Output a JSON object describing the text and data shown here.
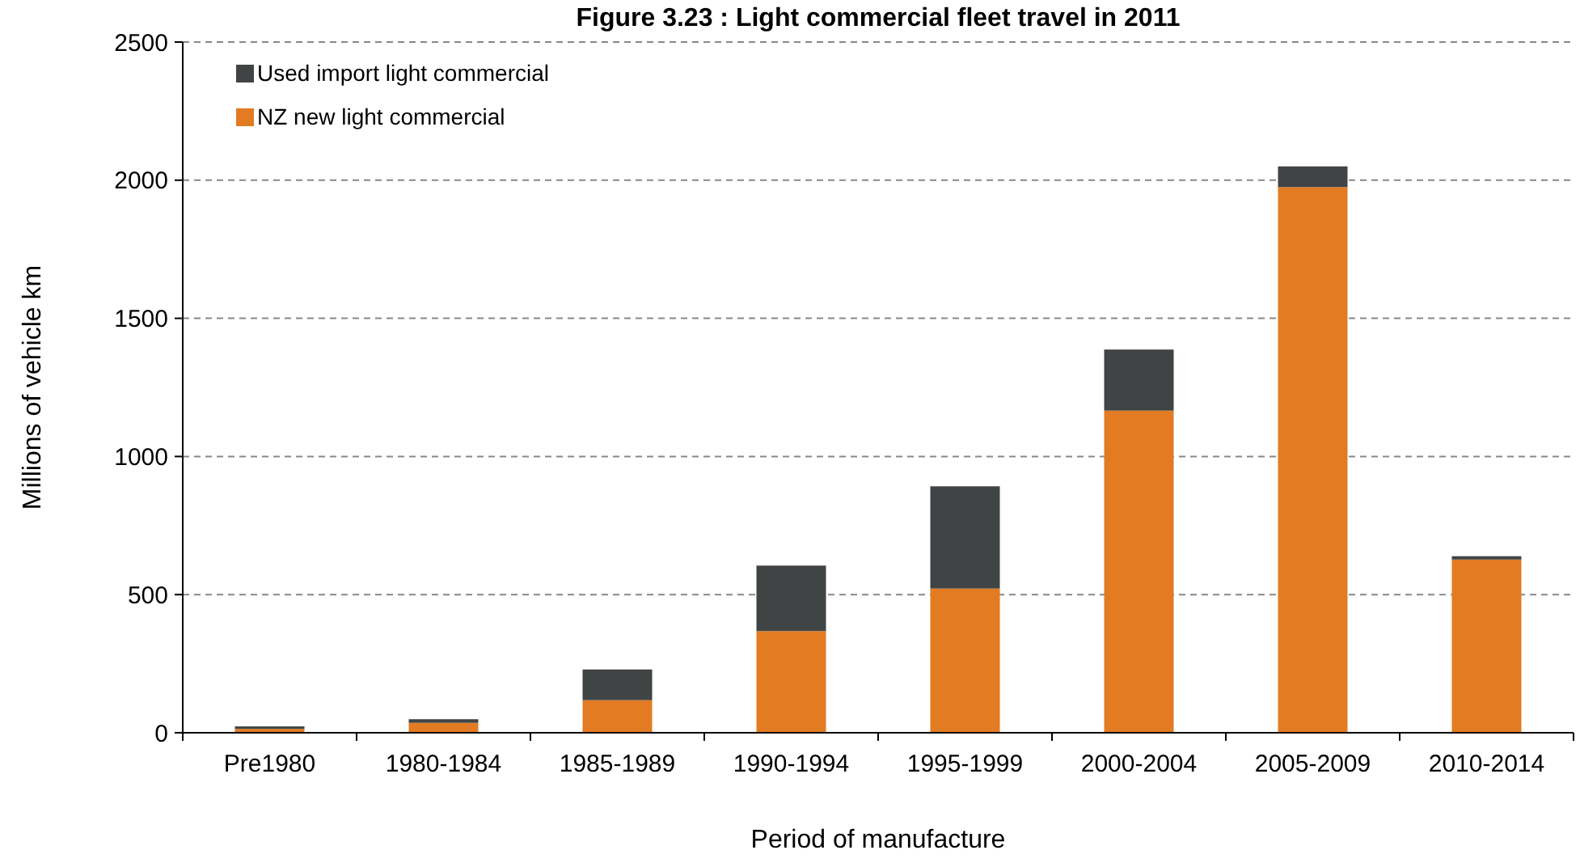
{
  "chart_data": {
    "type": "bar",
    "title": "Figure 3.23 : Light commercial fleet travel in 2011",
    "xlabel": "Period of manufacture",
    "ylabel": "Millions of vehicle km",
    "categories": [
      "Pre1980",
      "1980-1984",
      "1985-1989",
      "1990-1994",
      "1995-1999",
      "2000-2004",
      "2005-2009",
      "2010-2014"
    ],
    "stacked": true,
    "series": [
      {
        "name": "NZ new light commercial",
        "color": "#e27b22",
        "values": [
          14,
          36,
          118,
          368,
          522,
          1166,
          1975,
          627
        ]
      },
      {
        "name": "Used import light commercial",
        "color": "#404444",
        "values": [
          9,
          13,
          111,
          237,
          370,
          221,
          75,
          12
        ]
      }
    ],
    "ylim": [
      0,
      2500
    ],
    "yticks": [
      0,
      500,
      1000,
      1500,
      2000,
      2500
    ],
    "grid": "y",
    "legend": "top left"
  }
}
